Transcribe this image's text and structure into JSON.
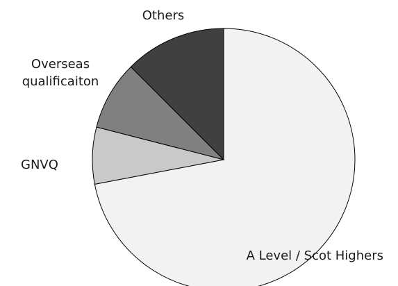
{
  "chart_data": {
    "type": "pie",
    "title": "",
    "slices": [
      {
        "label": "A Level / Scot Highers",
        "value": 72,
        "color": "#f2f2f2"
      },
      {
        "label": "GNVQ",
        "value": 7,
        "color": "#c9c9c9"
      },
      {
        "label": "Overseas qualificaiton",
        "label_lines": [
          "Overseas",
          "qualificaiton"
        ],
        "value": 8.5,
        "color": "#808080"
      },
      {
        "label": "Others",
        "value": 12.5,
        "color": "#404040"
      }
    ],
    "start_angle": "12 o'clock",
    "direction": "clockwise",
    "legend": "none"
  }
}
